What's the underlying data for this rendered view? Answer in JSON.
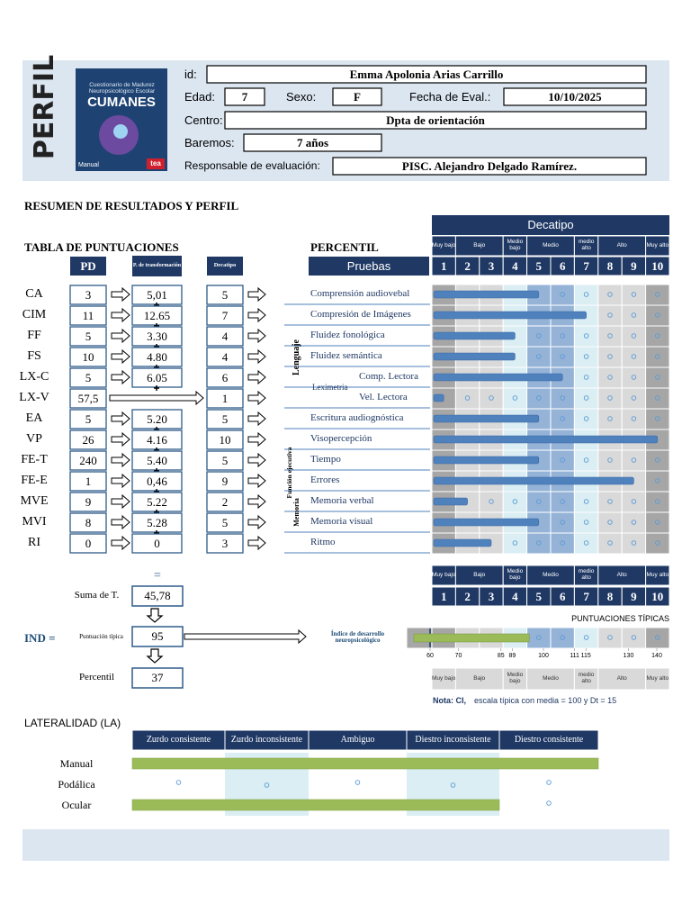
{
  "header": {
    "title": "PERFIL",
    "cover": {
      "subtitle": "Cuestionario de Madurez Neuropsicológico Escolar",
      "title": "CUMANES",
      "label": "Manual",
      "publisher": "tea"
    },
    "fields": {
      "id_label": "id:",
      "id": "Emma Apolonia Arias Carrillo",
      "age_label": "Edad:",
      "age": "7",
      "sex_label": "Sexo:",
      "sex": "F",
      "date_label": "Fecha de Eval.:",
      "date": "10/10/2025",
      "center_label": "Centro:",
      "center": "Dpta de orientación",
      "norms_label": "Baremos:",
      "norms": "7 años",
      "evaluator_label": "Responsable de evaluación:",
      "evaluator": "PISC. Alejandro Delgado Ramírez."
    }
  },
  "section_title": "RESUMEN DE RESULTADOS Y PERFIL",
  "scores": {
    "title": "TABLA DE PUNTUACIONES",
    "percentile_title": "PERCENTIL",
    "headers": {
      "pd": "PD",
      "transform": "P. de transformación",
      "decatipo": "Decatipo",
      "tests": "Pruebas",
      "scale": "Decatipo"
    },
    "levels": [
      "Muy bajo",
      "Bajo",
      "Medio bajo",
      "Medio",
      "medio alto",
      "Alto",
      "Muy alto"
    ],
    "scale": [
      1,
      2,
      3,
      4,
      5,
      6,
      7,
      8,
      9,
      10
    ],
    "groups": {
      "language": "Lenguaje",
      "leximetry": "Leximetria",
      "executive": "Función ejecutiva",
      "memory": "Memoria"
    },
    "rows": [
      {
        "code": "CA",
        "pd": "3",
        "transform": "5,01",
        "decatipo": 5,
        "test": "Comprensión audiovebal"
      },
      {
        "code": "CIM",
        "pd": "11",
        "transform": "12.65",
        "decatipo": 7,
        "test": "Compresión de Imágenes"
      },
      {
        "code": "FF",
        "pd": "5",
        "transform": "3.30",
        "decatipo": 4,
        "test": "Fluidez fonológica"
      },
      {
        "code": "FS",
        "pd": "10",
        "transform": "4.80",
        "decatipo": 4,
        "test": "Fluidez semántica"
      },
      {
        "code": "LX-C",
        "pd": "5",
        "transform": "6.05",
        "decatipo": 6,
        "test": "Comp. Lectora"
      },
      {
        "code": "LX-V",
        "pd": "57,5",
        "transform": null,
        "decatipo": 1,
        "test": "Vel. Lectora"
      },
      {
        "code": "EA",
        "pd": "5",
        "transform": "5.20",
        "decatipo": 5,
        "test": "Escritura audiognóstica"
      },
      {
        "code": "VP",
        "pd": "26",
        "transform": "4.16",
        "decatipo": 10,
        "test": "Visopercepción"
      },
      {
        "code": "FE-T",
        "pd": "240",
        "transform": "5.40",
        "decatipo": 5,
        "test": "Tiempo"
      },
      {
        "code": "FE-E",
        "pd": "1",
        "transform": "0,46",
        "decatipo": 9,
        "test": "Errores"
      },
      {
        "code": "MVE",
        "pd": "9",
        "transform": "5.22",
        "decatipo": 2,
        "test": "Memoria verbal"
      },
      {
        "code": "MVI",
        "pd": "8",
        "transform": "5.28",
        "decatipo": 5,
        "test": "Memoria visual"
      },
      {
        "code": "RI",
        "pd": "0",
        "transform": "0",
        "decatipo": 3,
        "test": "Ritmo"
      }
    ]
  },
  "index": {
    "equals": "=",
    "sum_label": "Suma de T.",
    "sum": "45,78",
    "ind_label": "IND =",
    "typical_label": "Puntuación típica",
    "typical": 95,
    "percentile_label": "Percentil",
    "percentile": 37,
    "index_label": "Índice de desarrollo neuropsicológico",
    "scale_title": "PUNTUACIONES TÍPICAS",
    "ticks": [
      60,
      70,
      85,
      89,
      100,
      111,
      115,
      130,
      140
    ],
    "note_label": "Nota: CI,",
    "note": "escala típica con media = 100 y Dt = 15"
  },
  "laterality": {
    "title": "LATERALIDAD (LA)",
    "columns": [
      "Zurdo consistente",
      "Zurdo inconsistente",
      "Ambiguo",
      "Diestro inconsistente",
      "Diestro consistente"
    ],
    "rows": [
      {
        "label": "Manual",
        "level": 5
      },
      {
        "label": "Podálica",
        "level": null
      },
      {
        "label": "Ocular",
        "level": 4
      }
    ]
  }
}
